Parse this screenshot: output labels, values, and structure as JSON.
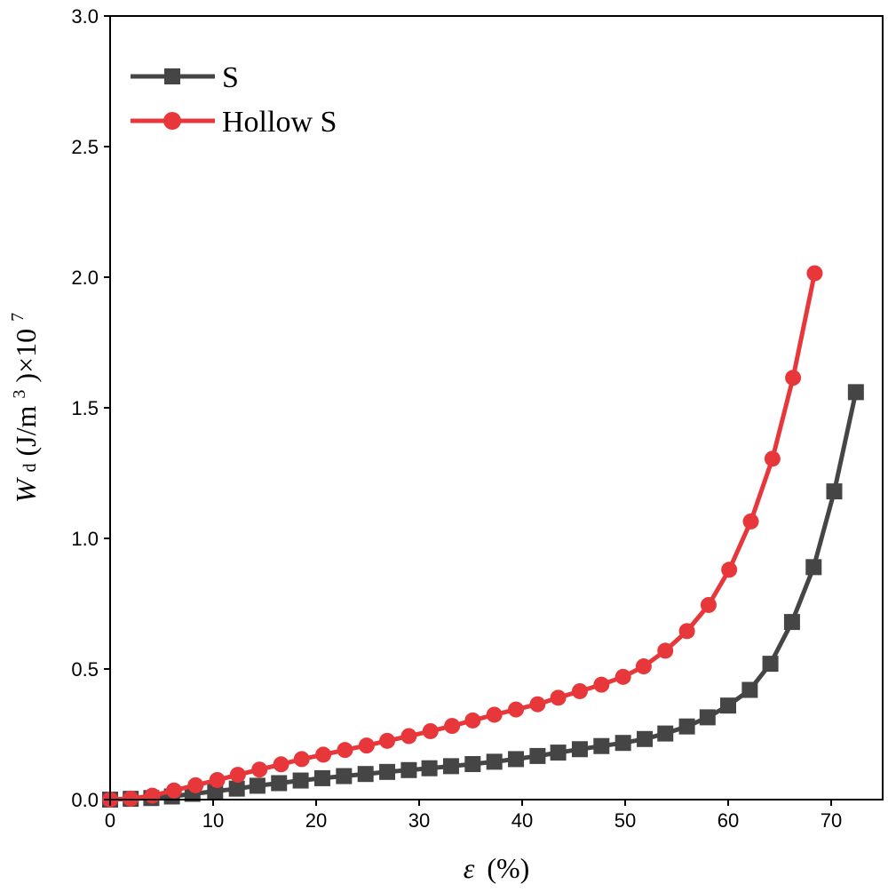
{
  "chart_data": {
    "type": "line",
    "xlabel": {
      "symbol": "ε",
      "unit": "(%)"
    },
    "ylabel": {
      "symbol": "W",
      "subscript": "d",
      "unit_prefix": "(J/m",
      "unit_power": "3",
      "unit_suffix": ")×10",
      "exponent": "7"
    },
    "xlim": [
      0,
      75
    ],
    "ylim": [
      0,
      3.0
    ],
    "x_ticks": [
      0,
      10,
      20,
      30,
      40,
      50,
      60,
      70
    ],
    "x_tick_labels": [
      "0",
      "10",
      "20",
      "30",
      "40",
      "50",
      "60",
      "70"
    ],
    "y_ticks": [
      0,
      0.5,
      1.0,
      1.5,
      2.0,
      2.5,
      3.0
    ],
    "y_tick_labels": [
      "0.0",
      "0.5",
      "1.0",
      "1.5",
      "2.0",
      "2.5",
      "3.0"
    ],
    "legend_position": "top-left",
    "series": [
      {
        "name": "S",
        "color": "#454545",
        "marker": "square",
        "x": [
          0,
          2,
          4,
          6,
          8,
          10.2,
          12.3,
          14.3,
          16.4,
          18.5,
          20.6,
          22.7,
          24.8,
          26.9,
          29,
          31,
          33.1,
          35.2,
          37.3,
          39.4,
          41.5,
          43.5,
          45.6,
          47.7,
          49.8,
          51.9,
          53.9,
          56,
          58,
          60,
          62.1,
          64.1,
          66.2,
          68.3,
          70.3,
          72.4
        ],
        "y": [
          0,
          0.003,
          0.006,
          0.012,
          0.022,
          0.032,
          0.042,
          0.053,
          0.063,
          0.073,
          0.082,
          0.09,
          0.098,
          0.106,
          0.113,
          0.12,
          0.128,
          0.136,
          0.145,
          0.155,
          0.167,
          0.18,
          0.193,
          0.205,
          0.217,
          0.232,
          0.253,
          0.28,
          0.315,
          0.36,
          0.42,
          0.52,
          0.68,
          0.89,
          1.18,
          1.56
        ]
      },
      {
        "name": "Hollow S",
        "color": "#e8373a",
        "marker": "circle",
        "x": [
          0,
          2,
          4.1,
          6.2,
          8.3,
          10.4,
          12.4,
          14.5,
          16.6,
          18.6,
          20.7,
          22.8,
          24.9,
          26.9,
          29,
          31.1,
          33.2,
          35.2,
          37.3,
          39.4,
          41.5,
          43.5,
          45.6,
          47.7,
          49.8,
          51.8,
          53.9,
          56,
          58.1,
          60.1,
          62.2,
          64.3,
          66.3,
          68.4
        ],
        "y": [
          0,
          0.004,
          0.015,
          0.035,
          0.055,
          0.075,
          0.095,
          0.115,
          0.135,
          0.155,
          0.172,
          0.19,
          0.207,
          0.225,
          0.243,
          0.262,
          0.282,
          0.303,
          0.325,
          0.345,
          0.365,
          0.39,
          0.415,
          0.44,
          0.47,
          0.51,
          0.57,
          0.645,
          0.745,
          0.88,
          1.065,
          1.305,
          1.615,
          2.015
        ]
      }
    ]
  }
}
